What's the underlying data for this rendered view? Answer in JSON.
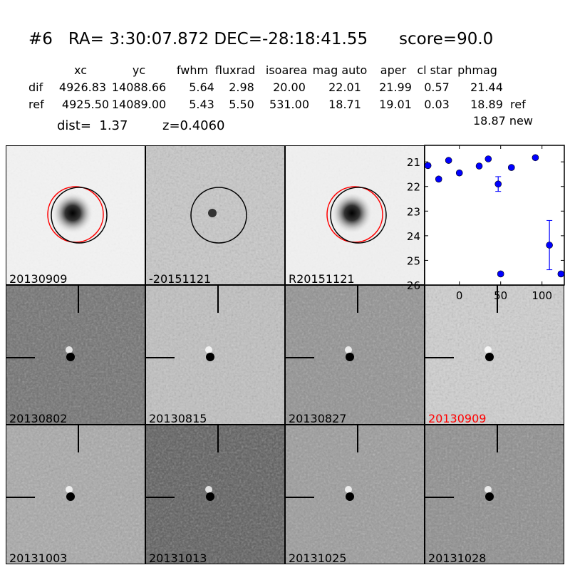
{
  "header": {
    "title": "#6   RA= 3:30:07.872 DEC=-28:18:41.55      score=90.0",
    "columns": [
      "xc",
      "yc",
      "fwhm",
      "fluxrad",
      "isoarea",
      "mag auto",
      "aper",
      "cl star",
      "phmag"
    ],
    "rows": [
      {
        "label": "dif",
        "values": [
          "4926.83",
          "14088.66",
          "5.64",
          "2.98",
          "20.00",
          "22.01",
          "21.99",
          "0.57",
          "21.44"
        ],
        "note": ""
      },
      {
        "label": "ref",
        "values": [
          "4925.50",
          "14089.00",
          "5.43",
          "5.50",
          "531.00",
          "18.71",
          "19.01",
          "0.03",
          "18.89"
        ],
        "note": "ref"
      }
    ],
    "dist": "dist=  1.37",
    "z": "z=0.4060",
    "new_mag": "18.87 new"
  },
  "panels": [
    {
      "label": "20130909",
      "circles": true,
      "cross": false,
      "bg": "#f2f2f2",
      "color": "#000"
    },
    {
      "label": "-20151121",
      "circles": "black",
      "cross": false,
      "bg": "#c8c8c8",
      "color": "#000"
    },
    {
      "label": "R20151121",
      "circles": true,
      "cross": false,
      "bg": "#f0f0f0",
      "color": "#000"
    },
    {
      "label": "20130802",
      "cross": true,
      "bg": "#6e6e6e",
      "color": "#000"
    },
    {
      "label": "20130815",
      "cross": true,
      "bg": "#c0c0c0",
      "color": "#000"
    },
    {
      "label": "20130827",
      "cross": true,
      "bg": "#909090",
      "color": "#000"
    },
    {
      "label": "20130909",
      "cross": true,
      "bg": "#d0d0d0",
      "color": "#ff0000"
    },
    {
      "label": "20131003",
      "cross": true,
      "bg": "#a8a8a8",
      "color": "#000"
    },
    {
      "label": "20131013",
      "cross": true,
      "bg": "#5a5a5a",
      "color": "#000"
    },
    {
      "label": "20131025",
      "cross": true,
      "bg": "#9a9a9a",
      "color": "#000"
    },
    {
      "label": "20131028",
      "cross": true,
      "bg": "#8c8c8c",
      "color": "#000"
    }
  ],
  "chart_data": {
    "type": "scatter",
    "xlim": [
      -42,
      127
    ],
    "ylim": [
      26,
      20.33
    ],
    "y_inverted": true,
    "xticks": [
      0,
      50,
      100
    ],
    "yticks": [
      21,
      22,
      23,
      24,
      25,
      26
    ],
    "color": "#0000ff",
    "x": [
      -38,
      -25,
      -13,
      0,
      24,
      35,
      47,
      50,
      63,
      92,
      109,
      123
    ],
    "y": [
      21.15,
      21.7,
      20.94,
      21.45,
      21.17,
      20.88,
      21.9,
      25.55,
      21.23,
      20.83,
      24.38,
      25.55
    ],
    "yerr": [
      0.06,
      0.08,
      0.04,
      0.07,
      0.05,
      0.04,
      0.3,
      0.05,
      0.07,
      0.04,
      1.0,
      0.05
    ]
  }
}
